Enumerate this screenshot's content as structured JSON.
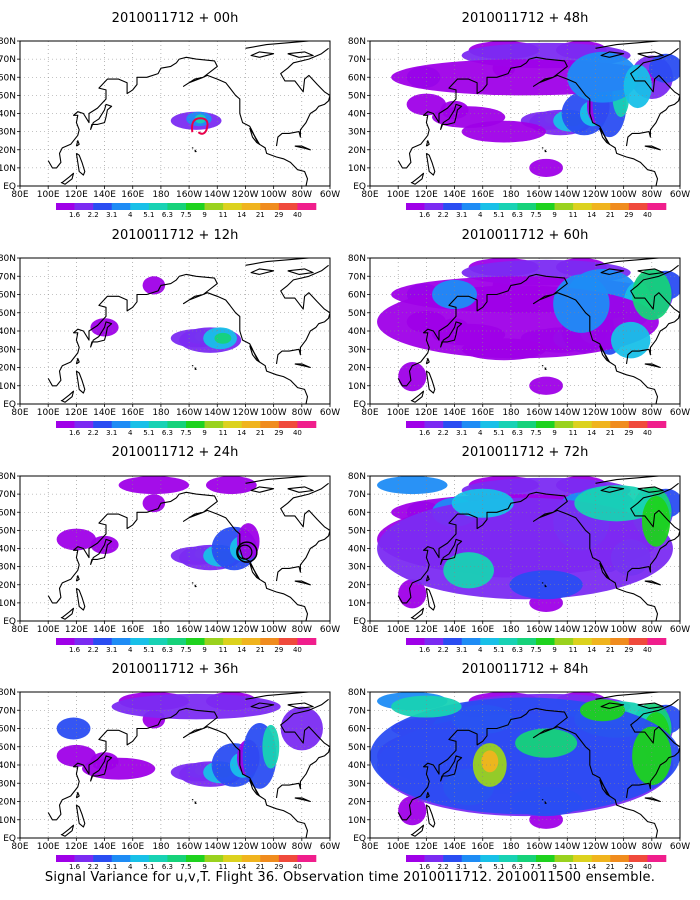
{
  "caption": "Signal Variance for u,v,T. Flight 36. Observation time 2010011712. 2010011500 ensemble.",
  "panels": [
    {
      "title": "2010011712 + 00h",
      "stage": 0
    },
    {
      "title": "2010011712 + 12h",
      "stage": 1
    },
    {
      "title": "2010011712 + 24h",
      "stage": 2
    },
    {
      "title": "2010011712 + 36h",
      "stage": 3
    },
    {
      "title": "2010011712 + 48h",
      "stage": 4
    },
    {
      "title": "2010011712 + 60h",
      "stage": 5
    },
    {
      "title": "2010011712 + 72h",
      "stage": 6
    },
    {
      "title": "2010011712 + 84h",
      "stage": 7
    }
  ],
  "x_ticks": [
    "80E",
    "100E",
    "120E",
    "140E",
    "160E",
    "180",
    "160W",
    "140W",
    "120W",
    "100W",
    "80W",
    "60W"
  ],
  "y_ticks": [
    "EQ",
    "10N",
    "20N",
    "30N",
    "40N",
    "50N",
    "60N",
    "70N",
    "80N"
  ],
  "colorbar": {
    "labels": [
      "1.6",
      "2.2",
      "3.1",
      "4",
      "5.1",
      "6.3",
      "7.5",
      "9",
      "11",
      "14",
      "21",
      "29",
      "40"
    ],
    "colors": [
      "#9f00e8",
      "#7b2bf2",
      "#2a4df2",
      "#1e8cf5",
      "#18c0e8",
      "#18d2b4",
      "#16d27a",
      "#1ed21e",
      "#9ad21e",
      "#dcd21e",
      "#f0b41e",
      "#f08c1e",
      "#f04a3c",
      "#f01e8c"
    ]
  },
  "markers": {
    "circle_color": "#000000",
    "loop_color": "#e8004a"
  }
}
